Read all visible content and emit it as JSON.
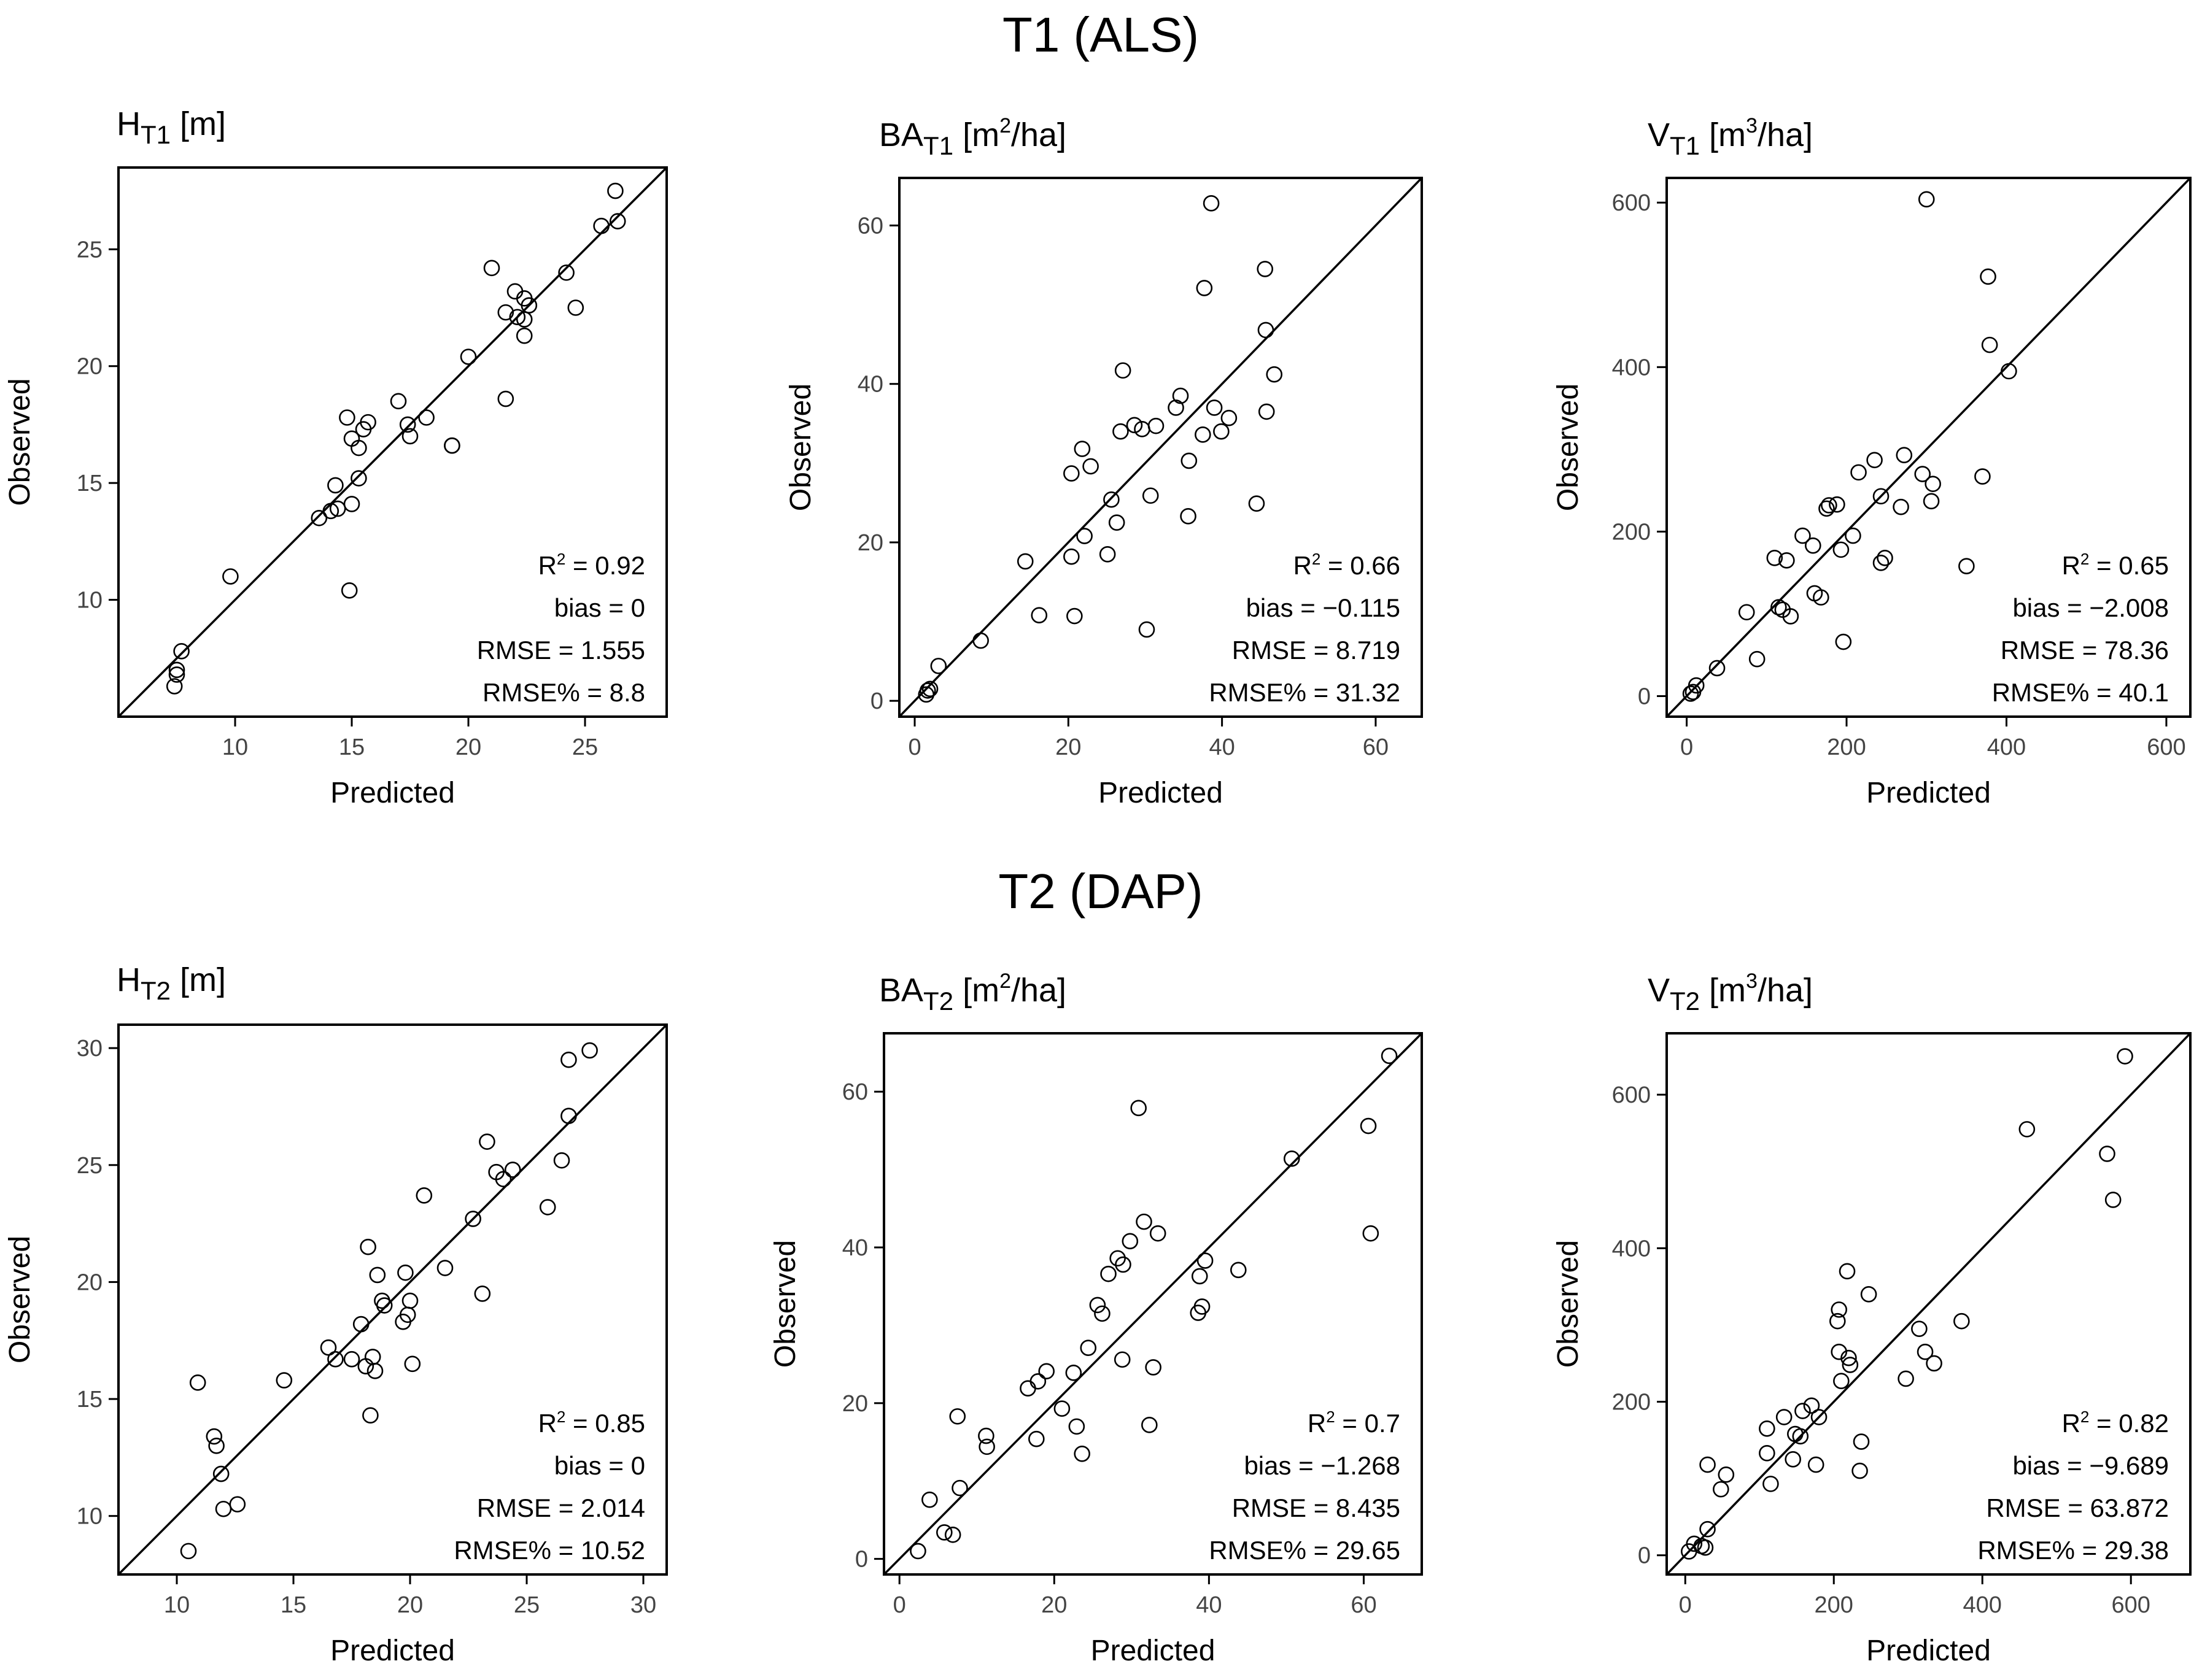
{
  "sections": [
    {
      "title": "T1 (ALS)"
    },
    {
      "title": "T2 (DAP)"
    }
  ],
  "chart_data": [
    {
      "type": "scatter",
      "title": {
        "base": "H",
        "subscript": "T1",
        "unit_prefix": " [m",
        "unit_sup": "",
        "unit_suffix": "]"
      },
      "xlabel": "Predicted",
      "ylabel": "Observed",
      "xlim": [
        5,
        28.5
      ],
      "ylim": [
        5,
        28.5
      ],
      "xticks": [
        10,
        15,
        20,
        25
      ],
      "yticks": [
        10,
        15,
        20,
        25
      ],
      "reference_line": "1:1",
      "stats": {
        "r2_label": "R",
        "r2_sup": "2",
        "r2_value": " = 0.92",
        "bias": "bias = 0",
        "rmse": "RMSE = 1.555",
        "rmse_pct": "RMSE% = 8.8"
      },
      "points": [
        [
          7.4,
          6.3
        ],
        [
          7.5,
          6.8
        ],
        [
          7.5,
          7.0
        ],
        [
          7.7,
          7.8
        ],
        [
          9.8,
          11.0
        ],
        [
          13.6,
          13.5
        ],
        [
          14.1,
          13.8
        ],
        [
          14.3,
          14.9
        ],
        [
          14.4,
          13.9
        ],
        [
          14.8,
          17.8
        ],
        [
          14.9,
          10.4
        ],
        [
          15.0,
          14.1
        ],
        [
          15.0,
          16.9
        ],
        [
          15.3,
          15.2
        ],
        [
          15.3,
          16.5
        ],
        [
          15.5,
          17.3
        ],
        [
          15.7,
          17.6
        ],
        [
          17.0,
          18.5
        ],
        [
          17.4,
          17.5
        ],
        [
          17.5,
          17.0
        ],
        [
          18.2,
          17.8
        ],
        [
          19.3,
          16.6
        ],
        [
          19.3,
          16.6
        ],
        [
          20.0,
          20.4
        ],
        [
          21.0,
          24.2
        ],
        [
          21.6,
          18.6
        ],
        [
          21.6,
          22.3
        ],
        [
          22.0,
          23.2
        ],
        [
          22.1,
          22.1
        ],
        [
          22.4,
          21.3
        ],
        [
          22.4,
          22.9
        ],
        [
          22.4,
          22.0
        ],
        [
          22.6,
          22.6
        ],
        [
          24.2,
          24.0
        ],
        [
          24.6,
          22.5
        ],
        [
          25.7,
          26.0
        ],
        [
          26.3,
          27.5
        ],
        [
          26.4,
          26.2
        ]
      ]
    },
    {
      "type": "scatter",
      "title": {
        "base": "BA",
        "subscript": "T1",
        "unit_prefix": " [m",
        "unit_sup": "2",
        "unit_suffix": "/ha]"
      },
      "xlabel": "Predicted",
      "ylabel": "Observed",
      "xlim": [
        -2,
        66
      ],
      "ylim": [
        -2,
        66
      ],
      "xticks": [
        0,
        20,
        40,
        60
      ],
      "yticks": [
        0,
        20,
        40,
        60
      ],
      "reference_line": "1:1",
      "stats": {
        "r2_label": "R",
        "r2_sup": "2",
        "r2_value": " = 0.66",
        "bias": "bias = −0.115",
        "rmse": "RMSE = 8.719",
        "rmse_pct": "RMSE% = 31.32"
      },
      "points": [
        [
          1.5,
          0.8
        ],
        [
          1.7,
          1.3
        ],
        [
          2.0,
          1.5
        ],
        [
          3.1,
          4.4
        ],
        [
          8.6,
          7.6
        ],
        [
          14.4,
          17.6
        ],
        [
          16.2,
          10.8
        ],
        [
          20.4,
          28.7
        ],
        [
          20.4,
          18.2
        ],
        [
          20.8,
          10.7
        ],
        [
          21.8,
          31.8
        ],
        [
          22.1,
          20.8
        ],
        [
          22.9,
          29.6
        ],
        [
          25.1,
          18.5
        ],
        [
          25.6,
          25.4
        ],
        [
          26.3,
          22.5
        ],
        [
          26.8,
          34.0
        ],
        [
          27.1,
          41.7
        ],
        [
          28.6,
          34.8
        ],
        [
          29.6,
          34.3
        ],
        [
          30.2,
          9.0
        ],
        [
          30.7,
          25.9
        ],
        [
          31.4,
          34.7
        ],
        [
          34.0,
          37.0
        ],
        [
          34.6,
          38.5
        ],
        [
          35.6,
          23.3
        ],
        [
          35.7,
          30.3
        ],
        [
          37.5,
          33.6
        ],
        [
          37.7,
          52.1
        ],
        [
          38.6,
          62.8
        ],
        [
          39.0,
          37.0
        ],
        [
          39.9,
          34.0
        ],
        [
          40.9,
          35.7
        ],
        [
          44.5,
          24.9
        ],
        [
          45.6,
          54.5
        ],
        [
          45.7,
          46.8
        ],
        [
          45.8,
          36.5
        ],
        [
          46.8,
          41.2
        ]
      ]
    },
    {
      "type": "scatter",
      "title": {
        "base": "V",
        "subscript": "T1",
        "unit_prefix": " [m",
        "unit_sup": "3",
        "unit_suffix": "/ha]"
      },
      "xlabel": "Predicted",
      "ylabel": "Observed",
      "xlim": [
        -25,
        630
      ],
      "ylim": [
        -25,
        630
      ],
      "xticks": [
        0,
        200,
        400,
        600
      ],
      "yticks": [
        0,
        200,
        400,
        600
      ],
      "reference_line": "1:1",
      "stats": {
        "r2_label": "R",
        "r2_sup": "2",
        "r2_value": " = 0.65",
        "bias": "bias = −2.008",
        "rmse": "RMSE = 78.36",
        "rmse_pct": "RMSE% = 40.1"
      },
      "points": [
        [
          5,
          3
        ],
        [
          8,
          5
        ],
        [
          12,
          13
        ],
        [
          38,
          34
        ],
        [
          75,
          102
        ],
        [
          88,
          45
        ],
        [
          110,
          168
        ],
        [
          115,
          108
        ],
        [
          120,
          105
        ],
        [
          125,
          165
        ],
        [
          130,
          97
        ],
        [
          145,
          195
        ],
        [
          158,
          183
        ],
        [
          160,
          125
        ],
        [
          168,
          120
        ],
        [
          175,
          228
        ],
        [
          178,
          232
        ],
        [
          188,
          233
        ],
        [
          193,
          178
        ],
        [
          196,
          66
        ],
        [
          208,
          195
        ],
        [
          215,
          272
        ],
        [
          235,
          287
        ],
        [
          243,
          243
        ],
        [
          243,
          162
        ],
        [
          248,
          168
        ],
        [
          268,
          230
        ],
        [
          272,
          293
        ],
        [
          295,
          270
        ],
        [
          300,
          604
        ],
        [
          306,
          237
        ],
        [
          308,
          258
        ],
        [
          350,
          158
        ],
        [
          370,
          267
        ],
        [
          377,
          510
        ],
        [
          379,
          427
        ],
        [
          403,
          395
        ]
      ]
    },
    {
      "type": "scatter",
      "title": {
        "base": "H",
        "subscript": "T2",
        "unit_prefix": " [m",
        "unit_sup": "",
        "unit_suffix": "]"
      },
      "xlabel": "Predicted",
      "ylabel": "Observed",
      "xlim": [
        7.5,
        31
      ],
      "ylim": [
        7.5,
        31
      ],
      "xticks": [
        10,
        15,
        20,
        25,
        30
      ],
      "yticks": [
        10,
        15,
        20,
        25,
        30
      ],
      "reference_line": "1:1",
      "stats": {
        "r2_label": "R",
        "r2_sup": "2",
        "r2_value": " = 0.85",
        "bias": "bias = 0",
        "rmse": "RMSE = 2.014",
        "rmse_pct": "RMSE% = 10.52"
      },
      "points": [
        [
          10.5,
          8.5
        ],
        [
          10.9,
          15.7
        ],
        [
          11.6,
          13.4
        ],
        [
          11.7,
          13.0
        ],
        [
          11.9,
          11.8
        ],
        [
          12.0,
          10.3
        ],
        [
          12.6,
          10.5
        ],
        [
          14.6,
          15.8
        ],
        [
          16.5,
          17.2
        ],
        [
          16.8,
          16.7
        ],
        [
          17.5,
          16.7
        ],
        [
          17.9,
          18.2
        ],
        [
          18.1,
          16.4
        ],
        [
          18.2,
          21.5
        ],
        [
          18.3,
          14.3
        ],
        [
          18.4,
          16.8
        ],
        [
          18.5,
          16.2
        ],
        [
          18.6,
          20.3
        ],
        [
          18.8,
          19.2
        ],
        [
          18.9,
          19.0
        ],
        [
          19.7,
          18.3
        ],
        [
          19.8,
          20.4
        ],
        [
          19.9,
          18.6
        ],
        [
          20.0,
          19.2
        ],
        [
          20.1,
          16.5
        ],
        [
          20.6,
          23.7
        ],
        [
          21.5,
          20.6
        ],
        [
          22.7,
          22.7
        ],
        [
          23.1,
          19.5
        ],
        [
          23.3,
          26.0
        ],
        [
          23.7,
          24.7
        ],
        [
          24.0,
          24.4
        ],
        [
          24.4,
          24.8
        ],
        [
          25.9,
          23.2
        ],
        [
          26.5,
          25.2
        ],
        [
          26.8,
          27.1
        ],
        [
          26.8,
          29.5
        ],
        [
          27.7,
          29.9
        ]
      ]
    },
    {
      "type": "scatter",
      "title": {
        "base": "BA",
        "subscript": "T2",
        "unit_prefix": " [m",
        "unit_sup": "2",
        "unit_suffix": "/ha]"
      },
      "xlabel": "Predicted",
      "ylabel": "Observed",
      "xlim": [
        -2,
        67.5
      ],
      "ylim": [
        -2,
        67.5
      ],
      "xticks": [
        0,
        20,
        40,
        60
      ],
      "yticks": [
        0,
        20,
        40,
        60
      ],
      "reference_line": "1:1",
      "stats": {
        "r2_label": "R",
        "r2_sup": "2",
        "r2_value": " = 0.7",
        "bias": "bias = −1.268",
        "rmse": "RMSE = 8.435",
        "rmse_pct": "RMSE% = 29.65"
      },
      "points": [
        [
          2.4,
          1.0
        ],
        [
          3.9,
          7.6
        ],
        [
          5.8,
          3.4
        ],
        [
          6.9,
          3.1
        ],
        [
          7.5,
          18.3
        ],
        [
          7.8,
          9.1
        ],
        [
          11.2,
          15.8
        ],
        [
          11.3,
          14.4
        ],
        [
          16.6,
          21.9
        ],
        [
          17.7,
          15.4
        ],
        [
          17.9,
          22.8
        ],
        [
          19.0,
          24.1
        ],
        [
          21.0,
          19.3
        ],
        [
          22.5,
          23.9
        ],
        [
          22.9,
          17.0
        ],
        [
          23.6,
          13.5
        ],
        [
          24.4,
          27.1
        ],
        [
          25.6,
          32.6
        ],
        [
          26.2,
          31.5
        ],
        [
          27.0,
          36.6
        ],
        [
          28.2,
          38.6
        ],
        [
          28.8,
          25.6
        ],
        [
          28.9,
          37.8
        ],
        [
          29.8,
          40.8
        ],
        [
          30.9,
          57.9
        ],
        [
          31.6,
          43.3
        ],
        [
          32.3,
          17.2
        ],
        [
          32.8,
          24.6
        ],
        [
          33.4,
          41.8
        ],
        [
          38.6,
          31.6
        ],
        [
          38.8,
          36.3
        ],
        [
          39.1,
          32.4
        ],
        [
          39.5,
          38.3
        ],
        [
          43.8,
          37.1
        ],
        [
          50.7,
          51.4
        ],
        [
          60.6,
          55.6
        ],
        [
          60.9,
          41.8
        ],
        [
          63.3,
          64.6
        ]
      ]
    },
    {
      "type": "scatter",
      "title": {
        "base": "V",
        "subscript": "T2",
        "unit_prefix": " [m",
        "unit_sup": "3",
        "unit_suffix": "/ha]"
      },
      "xlabel": "Predicted",
      "ylabel": "Observed",
      "xlim": [
        -25,
        680
      ],
      "ylim": [
        -25,
        680
      ],
      "xticks": [
        0,
        200,
        400,
        600
      ],
      "yticks": [
        0,
        200,
        400,
        600
      ],
      "reference_line": "1:1",
      "stats": {
        "r2_label": "R",
        "r2_sup": "2",
        "r2_value": " = 0.82",
        "bias": "bias = −9.689",
        "rmse": "RMSE = 63.872",
        "rmse_pct": "RMSE% = 29.38"
      },
      "points": [
        [
          5,
          5
        ],
        [
          12,
          15
        ],
        [
          22,
          12
        ],
        [
          27,
          10
        ],
        [
          30,
          34
        ],
        [
          30,
          118
        ],
        [
          48,
          86
        ],
        [
          55,
          105
        ],
        [
          110,
          133
        ],
        [
          110,
          165
        ],
        [
          115,
          93
        ],
        [
          133,
          180
        ],
        [
          145,
          125
        ],
        [
          148,
          158
        ],
        [
          155,
          155
        ],
        [
          158,
          188
        ],
        [
          170,
          195
        ],
        [
          176,
          118
        ],
        [
          180,
          180
        ],
        [
          205,
          305
        ],
        [
          207,
          320
        ],
        [
          207,
          265
        ],
        [
          210,
          227
        ],
        [
          218,
          370
        ],
        [
          220,
          257
        ],
        [
          222,
          248
        ],
        [
          235,
          110
        ],
        [
          237,
          148
        ],
        [
          247,
          340
        ],
        [
          297,
          230
        ],
        [
          315,
          295
        ],
        [
          323,
          265
        ],
        [
          335,
          250
        ],
        [
          372,
          305
        ],
        [
          460,
          555
        ],
        [
          568,
          523
        ],
        [
          576,
          463
        ],
        [
          592,
          650
        ]
      ]
    }
  ]
}
